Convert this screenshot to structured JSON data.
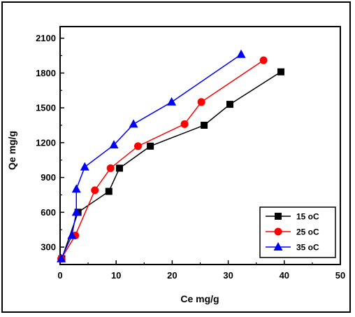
{
  "chart_data": {
    "type": "line",
    "xlabel": "Ce mg/g",
    "ylabel": "Qe mg/g",
    "xlim": [
      0,
      50
    ],
    "ylim": [
      150,
      2200
    ],
    "xticks": [
      0,
      10,
      20,
      30,
      40,
      50
    ],
    "yticks": [
      300,
      600,
      900,
      1200,
      1500,
      1800,
      2100
    ],
    "grid": false,
    "legend_position": "bottom-right",
    "series": [
      {
        "name": "15 oC",
        "color": "#000000",
        "marker": "square",
        "x": [
          0.3,
          3.2,
          8.7,
          10.6,
          16.1,
          25.7,
          30.3,
          39.4
        ],
        "y": [
          200,
          600,
          780,
          980,
          1170,
          1350,
          1530,
          1810
        ]
      },
      {
        "name": "25 oC",
        "color": "#ff0000",
        "marker": "circle",
        "x": [
          0.2,
          2.7,
          6.2,
          9.0,
          13.9,
          22.2,
          25.2,
          36.3
        ],
        "y": [
          200,
          400,
          790,
          980,
          1170,
          1360,
          1550,
          1910
        ]
      },
      {
        "name": "35 oC",
        "color": "#0000ff",
        "marker": "triangle",
        "x": [
          0.2,
          2.1,
          2.9,
          2.9,
          4.4,
          9.6,
          13.1,
          19.9,
          32.3
        ],
        "y": [
          200,
          400,
          600,
          800,
          990,
          1180,
          1360,
          1550,
          1960
        ]
      }
    ]
  }
}
